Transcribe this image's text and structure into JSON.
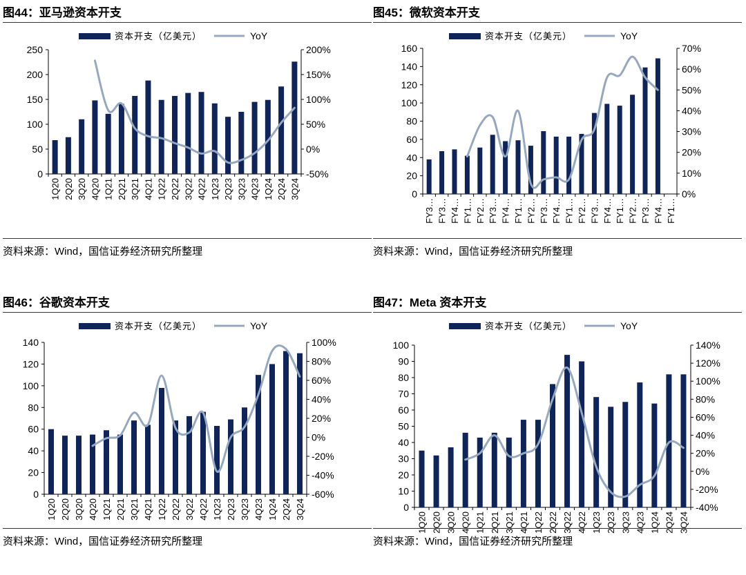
{
  "colors": {
    "bar": "#0f2559",
    "line": "#95a8bf"
  },
  "charts": [
    {
      "figure_title": "图44：亚马逊资本开支",
      "source": "资料来源：Wind，国信证券经济研究所整理"
    },
    {
      "figure_title": "图45：微软资本开支",
      "source": "资料来源：Wind，国信证券经济研究所整理"
    },
    {
      "figure_title": "图46：谷歌资本开支",
      "source": "资料来源：Wind，国信证券经济研究所整理"
    },
    {
      "figure_title": "图47：Meta 资本开支",
      "source": "资料来源：Wind，国信证券经济研究所整理"
    }
  ],
  "chart_data": [
    {
      "type": "bar",
      "title": "图44：亚马逊资本开支",
      "categories": [
        "1Q20",
        "2Q20",
        "3Q20",
        "4Q20",
        "1Q21",
        "2Q21",
        "3Q21",
        "4Q21",
        "1Q22",
        "2Q22",
        "3Q22",
        "4Q22",
        "1Q23",
        "2Q23",
        "3Q23",
        "4Q23",
        "1Q24",
        "2Q24",
        "3Q24"
      ],
      "series": [
        {
          "name": "资本开支（亿美元）",
          "type": "bar",
          "axis": "left",
          "values": [
            68,
            74,
            110,
            148,
            121,
            141,
            157,
            188,
            149,
            157,
            163,
            165,
            142,
            115,
            125,
            145,
            149,
            176,
            226
          ]
        },
        {
          "name": "YoY",
          "type": "line",
          "axis": "right",
          "values": [
            null,
            null,
            null,
            178,
            78,
            92,
            42,
            26,
            22,
            12,
            3,
            -9,
            -4,
            -27,
            -22,
            -8,
            17,
            53,
            83
          ]
        }
      ],
      "left_axis": {
        "min": 0,
        "max": 250,
        "step": 50,
        "suffix": ""
      },
      "right_axis": {
        "min": -50,
        "max": 200,
        "step": 50,
        "suffix": "%"
      },
      "legend": [
        "资本开支（亿美元）",
        "YoY"
      ],
      "legend_position": "top"
    },
    {
      "type": "bar",
      "title": "图45：微软资本开支",
      "categories": [
        "FY3…",
        "FY3…",
        "FY4…",
        "FY1…",
        "FY2…",
        "FY3…",
        "FY4…",
        "FY1…",
        "FY2…",
        "FY3…",
        "FY4…",
        "FY1…",
        "FY2…",
        "FY3…",
        "FY4…",
        "FY1…",
        "FY2…",
        "FY3…",
        "FY4…",
        "FY1…"
      ],
      "series": [
        {
          "name": "资本开支（亿美元）",
          "type": "bar",
          "axis": "left",
          "values": [
            38,
            47,
            49,
            42,
            51,
            65,
            58,
            59,
            53,
            69,
            63,
            63,
            66,
            89,
            99,
            97,
            109,
            139,
            149,
            null
          ]
        },
        {
          "name": "YoY",
          "type": "line",
          "axis": "right",
          "values": [
            null,
            null,
            null,
            18,
            33,
            37,
            18,
            40,
            5,
            7,
            8,
            7,
            26,
            31,
            56,
            57,
            66,
            56,
            50,
            null
          ]
        }
      ],
      "left_axis": {
        "min": 0,
        "max": 160,
        "step": 20,
        "suffix": ""
      },
      "right_axis": {
        "min": 0,
        "max": 70,
        "step": 10,
        "suffix": "%"
      },
      "legend": [
        "资本开支（亿美元）",
        "YoY"
      ],
      "legend_position": "top"
    },
    {
      "type": "bar",
      "title": "图46：谷歌资本开支",
      "categories": [
        "1Q20",
        "2Q20",
        "3Q20",
        "4Q20",
        "1Q21",
        "2Q21",
        "3Q21",
        "4Q21",
        "1Q22",
        "2Q22",
        "3Q22",
        "4Q22",
        "1Q23",
        "2Q23",
        "3Q23",
        "4Q23",
        "1Q24",
        "2Q24",
        "3Q24"
      ],
      "series": [
        {
          "name": "资本开支（亿美元）",
          "type": "bar",
          "axis": "left",
          "values": [
            60,
            54,
            54,
            55,
            59,
            55,
            68,
            64,
            98,
            68,
            72,
            76,
            63,
            69,
            80,
            110,
            120,
            132,
            130
          ]
        },
        {
          "name": "YoY",
          "type": "line",
          "axis": "right",
          "values": [
            null,
            null,
            null,
            -9,
            -1,
            2,
            26,
            13,
            65,
            10,
            5,
            26,
            -36,
            0,
            11,
            45,
            91,
            93,
            64
          ]
        }
      ],
      "left_axis": {
        "min": 0,
        "max": 140,
        "step": 20,
        "suffix": ""
      },
      "right_axis": {
        "min": -60,
        "max": 100,
        "step": 20,
        "suffix": "%"
      },
      "legend": [
        "资本开支（亿美元）",
        "YoY"
      ],
      "legend_position": "top"
    },
    {
      "type": "bar",
      "title": "图47：Meta 资本开支",
      "categories": [
        "1Q20",
        "2Q20",
        "3Q20",
        "4Q20",
        "1Q21",
        "2Q21",
        "3Q21",
        "4Q21",
        "1Q22",
        "2Q22",
        "3Q22",
        "4Q22",
        "1Q23",
        "2Q23",
        "3Q23",
        "4Q23",
        "1Q24",
        "2Q24",
        "3Q24"
      ],
      "series": [
        {
          "name": "资本开支（亿美元）",
          "type": "bar",
          "axis": "left",
          "values": [
            35,
            32,
            37,
            46,
            43,
            46,
            43,
            54,
            54,
            76,
            94,
            90,
            68,
            62,
            65,
            77,
            64,
            82,
            82
          ]
        },
        {
          "name": "YoY",
          "type": "line",
          "axis": "right",
          "values": [
            null,
            null,
            null,
            13,
            20,
            40,
            17,
            20,
            30,
            80,
            115,
            65,
            5,
            -23,
            -28,
            -15,
            -5,
            32,
            26
          ]
        }
      ],
      "left_axis": {
        "min": 0,
        "max": 100,
        "step": 10,
        "suffix": ""
      },
      "right_axis": {
        "min": -40,
        "max": 140,
        "step": 20,
        "suffix": "%"
      },
      "legend": [
        "资本开支（亿美元）",
        "YoY"
      ],
      "legend_position": "top"
    }
  ]
}
